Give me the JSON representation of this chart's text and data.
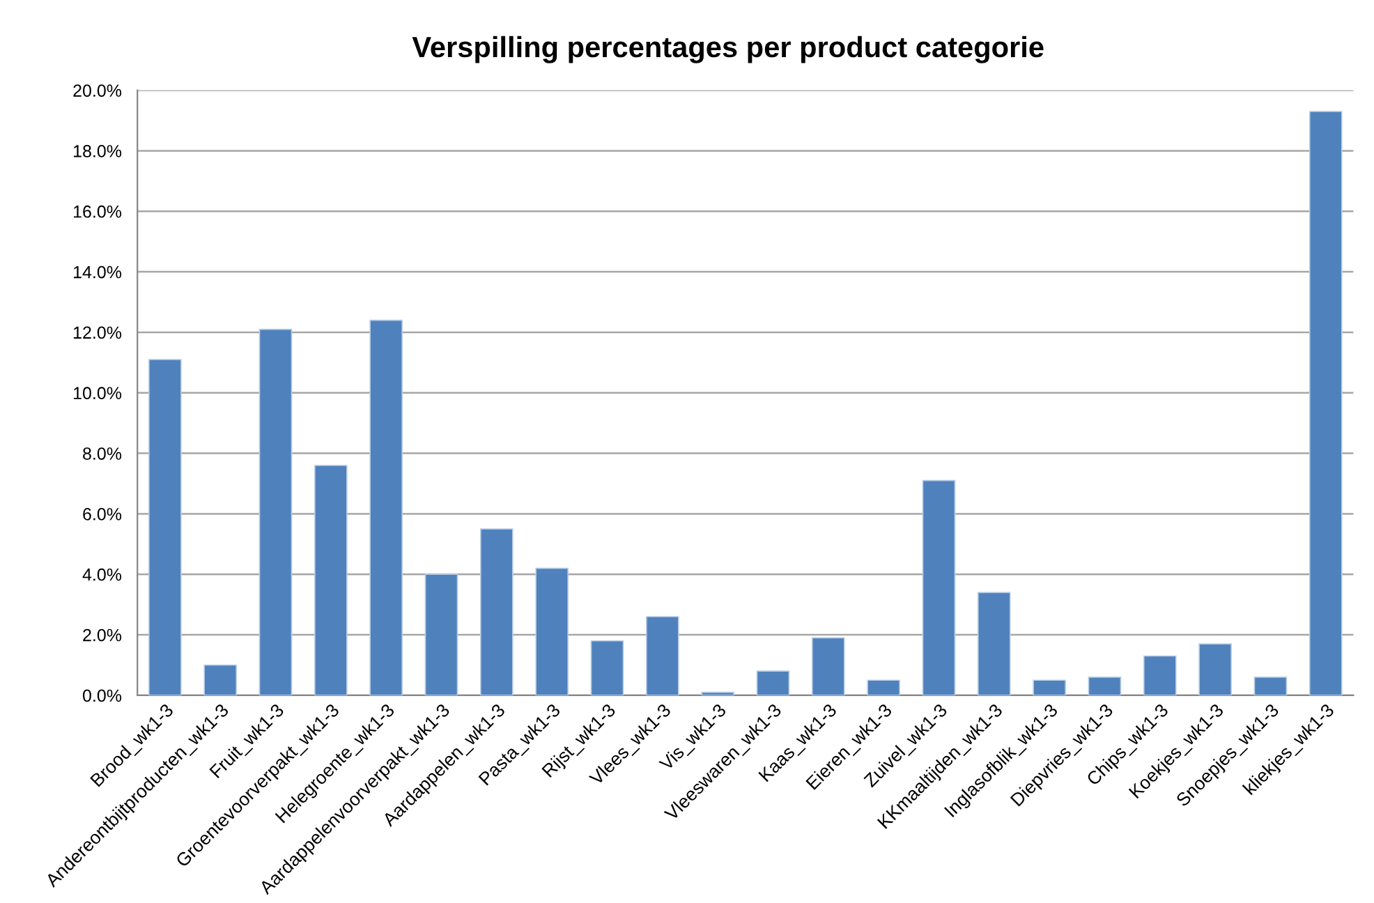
{
  "chart_data": {
    "type": "bar",
    "title": "Verspilling percentages per product categorie",
    "categories": [
      "Brood_wk1-3",
      "Andereontbijtproducten_wk1-3",
      "Fruit_wk1-3",
      "Groentevoorverpakt_wk1-3",
      "Helegroente_wk1-3",
      "Aardappelenvoorverpakt_wk1-3",
      "Aardappelen_wk1-3",
      "Pasta_wk1-3",
      "Rijst_wk1-3",
      "Vlees_wk1-3",
      "Vis_wk1-3",
      "Vleeswaren_wk1-3",
      "Kaas_wk1-3",
      "Eieren_wk1-3",
      "Zuivel_wk1-3",
      "KKmaaltijden_wk1-3",
      "Inglasofblik_wk1-3",
      "Diepvries_wk1-3",
      "Chips_wk1-3",
      "Koekjes_wk1-3",
      "Snoepjes_wk1-3",
      "kliekjes_wk1-3"
    ],
    "values": [
      11.1,
      1.0,
      12.1,
      7.6,
      12.4,
      4.0,
      5.5,
      4.2,
      1.8,
      2.6,
      0.1,
      0.8,
      1.9,
      0.5,
      7.1,
      3.4,
      0.5,
      0.6,
      1.3,
      1.7,
      0.6,
      19.3
    ],
    "color": "#4f81bd",
    "ylim": [
      0,
      20
    ],
    "yticks": [
      {
        "value": 0,
        "label": "0.0%"
      },
      {
        "value": 2,
        "label": "2.0%"
      },
      {
        "value": 4,
        "label": "4.0%"
      },
      {
        "value": 6,
        "label": "6.0%"
      },
      {
        "value": 8,
        "label": "8.0%"
      },
      {
        "value": 10,
        "label": "10.0%"
      },
      {
        "value": 12,
        "label": "12.0%"
      },
      {
        "value": 14,
        "label": "14.0%"
      },
      {
        "value": 16,
        "label": "16.0%"
      },
      {
        "value": 18,
        "label": "18.0%"
      },
      {
        "value": 20,
        "label": "20.0%"
      }
    ],
    "grid": "y"
  }
}
